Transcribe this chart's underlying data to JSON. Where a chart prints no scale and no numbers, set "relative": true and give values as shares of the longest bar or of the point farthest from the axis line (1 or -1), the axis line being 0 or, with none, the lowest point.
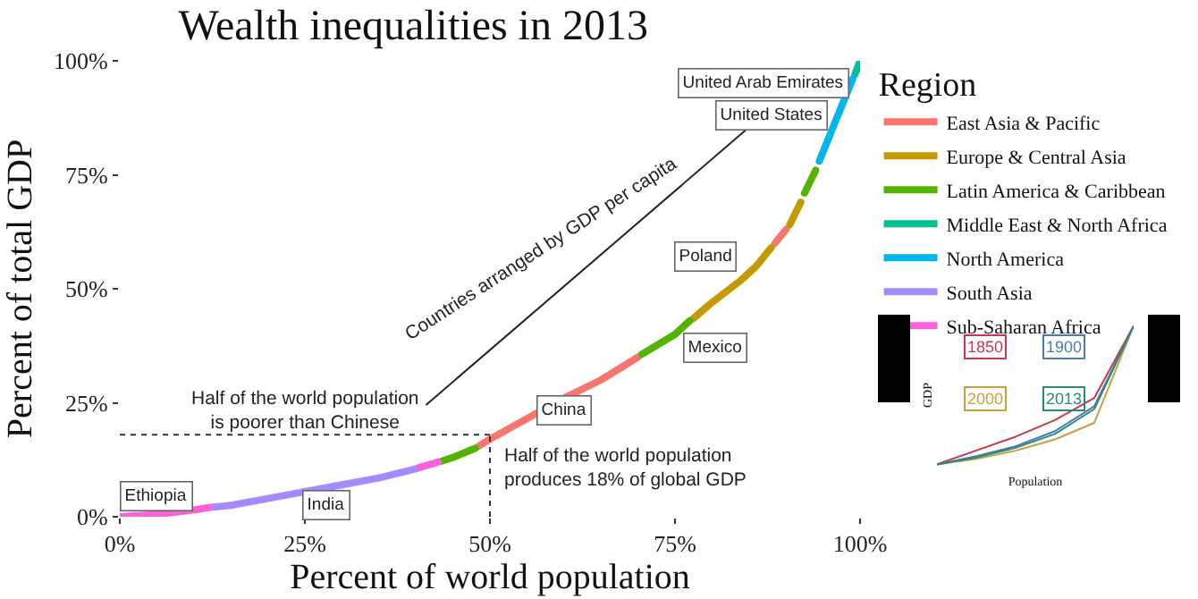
{
  "chart_data": [
    {
      "type": "line",
      "title": "Wealth inequalities in 2013",
      "xlabel": "Percent of world population",
      "ylabel": "Percent of total GDP",
      "legend_title": "Region",
      "legend": "right",
      "grid": false,
      "marker": "none",
      "line_style": "solid",
      "xlim": [
        0,
        100
      ],
      "ylim": [
        0,
        100
      ],
      "xticks": [
        {
          "value": 0,
          "label": "0%"
        },
        {
          "value": 25,
          "label": "25%"
        },
        {
          "value": 50,
          "label": "50%"
        },
        {
          "value": 75,
          "label": "75%"
        },
        {
          "value": 100,
          "label": "100%"
        }
      ],
      "yticks": [
        {
          "value": 0,
          "label": "0%"
        },
        {
          "value": 25,
          "label": "25%"
        },
        {
          "value": 50,
          "label": "50%"
        },
        {
          "value": 75,
          "label": "75%"
        },
        {
          "value": 100,
          "label": "100%"
        }
      ],
      "series": [
        {
          "name": "East Asia & Pacific",
          "color": "#f8766d",
          "x": [
            48.5,
            50,
            55,
            60,
            65,
            70,
            79,
            88.5,
            90
          ],
          "values": [
            15.5,
            17,
            21.5,
            26,
            30,
            35,
            null,
            60,
            63
          ]
        },
        {
          "name": "Europe & Central Asia",
          "color": "#c49a00",
          "x": [
            77.5,
            80,
            84,
            86,
            88,
            89,
            90.5,
            92
          ],
          "values": [
            43.5,
            47,
            52,
            55,
            59,
            null,
            64,
            69
          ]
        },
        {
          "name": "Latin America & Caribbean",
          "color": "#53b400",
          "x": [
            43.5,
            45,
            48,
            60,
            70.5,
            75,
            77,
            85,
            92.5,
            94
          ],
          "values": [
            12.2,
            13,
            15,
            null,
            35.6,
            40,
            43,
            null,
            71,
            76
          ]
        },
        {
          "name": "Middle East & North Africa",
          "color": "#00c094",
          "x": [
            99.3,
            100
          ],
          "values": [
            97,
            100
          ]
        },
        {
          "name": "North America",
          "color": "#00b6eb",
          "x": [
            94.5,
            96,
            98,
            99
          ],
          "values": [
            78,
            84,
            92,
            96
          ]
        },
        {
          "name": "South Asia",
          "color": "#a58aff",
          "x": [
            12.5,
            15,
            20,
            25,
            30,
            35,
            40
          ],
          "values": [
            2.1,
            2.5,
            4,
            5.5,
            7,
            8.5,
            10.5
          ]
        },
        {
          "name": "Sub-Saharan Africa",
          "color": "#fb61d7",
          "x": [
            0,
            5,
            10,
            12,
            25,
            40.5,
            43
          ],
          "values": [
            0,
            0.5,
            1.5,
            2,
            null,
            10.8,
            12
          ]
        }
      ],
      "ref_lines": [
        {
          "axis": "y",
          "value": 18,
          "line_style": "dotted",
          "color": "#333333"
        },
        {
          "axis": "x",
          "value": 50,
          "line_style": "dotted",
          "color": "#333333"
        }
      ],
      "annotations": [
        "Countries arranged by GDP per capita",
        "Half of the world population\nis poorer than Chinese",
        "Half of the world population\nproduces 18% of global GDP",
        {
          "text": "Ethiopia",
          "x": 5,
          "y": 4.5
        },
        {
          "text": "India",
          "x": 28,
          "y": 2.5
        },
        {
          "text": "China",
          "x": 60,
          "y": 23.5
        },
        {
          "text": "Mexico",
          "x": 80.5,
          "y": 37
        },
        {
          "text": "Poland",
          "x": 79,
          "y": 57
        },
        "United States",
        "United Arab Emirates"
      ]
    },
    {
      "type": "line",
      "relative": true,
      "xlabel": "Population",
      "ylabel": "GDP",
      "legend": "top left",
      "categories": [
        null,
        null,
        null,
        null,
        null,
        null
      ],
      "series": [
        {
          "name": "1850",
          "color": "#c8374a",
          "values": [
            0,
            0.1,
            0.2,
            0.32,
            0.48,
            1
          ]
        },
        {
          "name": "1900",
          "color": "#4a7ab0",
          "values": [
            0,
            0.06,
            0.13,
            0.24,
            0.42,
            1
          ]
        },
        {
          "name": "2000",
          "color": "#c9a040",
          "values": [
            0,
            0.04,
            0.1,
            0.18,
            0.3,
            1
          ]
        },
        {
          "name": "2013",
          "color": "#2a8a7a",
          "values": [
            0,
            0.05,
            0.12,
            0.22,
            0.4,
            1
          ]
        }
      ]
    }
  ]
}
